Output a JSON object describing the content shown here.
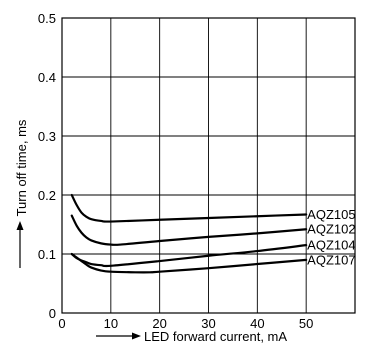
{
  "chart_data": {
    "type": "line",
    "xlabel": "LED forward current, mA",
    "ylabel": "Turn off time, ms",
    "xlim": [
      0,
      60
    ],
    "ylim": [
      0,
      0.5
    ],
    "xticks": [
      0,
      10,
      20,
      30,
      40,
      50
    ],
    "yticks": [
      0,
      0.1,
      0.2,
      0.3,
      0.4,
      0.5
    ],
    "xtick_labels": [
      "0",
      "10",
      "20",
      "30",
      "40",
      "50"
    ],
    "ytick_labels": [
      "0",
      "0.1",
      "0.2",
      "0.3",
      "0.4",
      "0.5"
    ],
    "grid": true,
    "legend": "none",
    "series": [
      {
        "name": "AQZ105",
        "x": [
          2,
          3,
          4,
          5,
          6,
          8,
          10,
          20,
          30,
          40,
          50
        ],
        "y": [
          0.2,
          0.183,
          0.17,
          0.163,
          0.159,
          0.156,
          0.155,
          0.158,
          0.161,
          0.164,
          0.167
        ]
      },
      {
        "name": "AQZ102",
        "x": [
          2,
          3,
          4,
          5,
          6,
          8,
          10,
          12,
          20,
          30,
          40,
          50
        ],
        "y": [
          0.165,
          0.148,
          0.136,
          0.128,
          0.123,
          0.118,
          0.116,
          0.116,
          0.122,
          0.129,
          0.135,
          0.142
        ]
      },
      {
        "name": "AQZ104",
        "x": [
          2,
          3,
          4,
          5,
          6,
          8,
          10,
          20,
          30,
          40,
          50
        ],
        "y": [
          0.1,
          0.093,
          0.089,
          0.086,
          0.083,
          0.081,
          0.08,
          0.088,
          0.097,
          0.105,
          0.115
        ]
      },
      {
        "name": "AQZ107",
        "x": [
          2,
          3,
          4,
          5,
          6,
          8,
          10,
          15,
          18,
          20,
          30,
          40,
          50
        ],
        "y": [
          0.1,
          0.094,
          0.088,
          0.082,
          0.077,
          0.072,
          0.07,
          0.069,
          0.069,
          0.07,
          0.076,
          0.083,
          0.09
        ]
      }
    ],
    "line_color": "#000000",
    "grid_color": "#000000"
  }
}
